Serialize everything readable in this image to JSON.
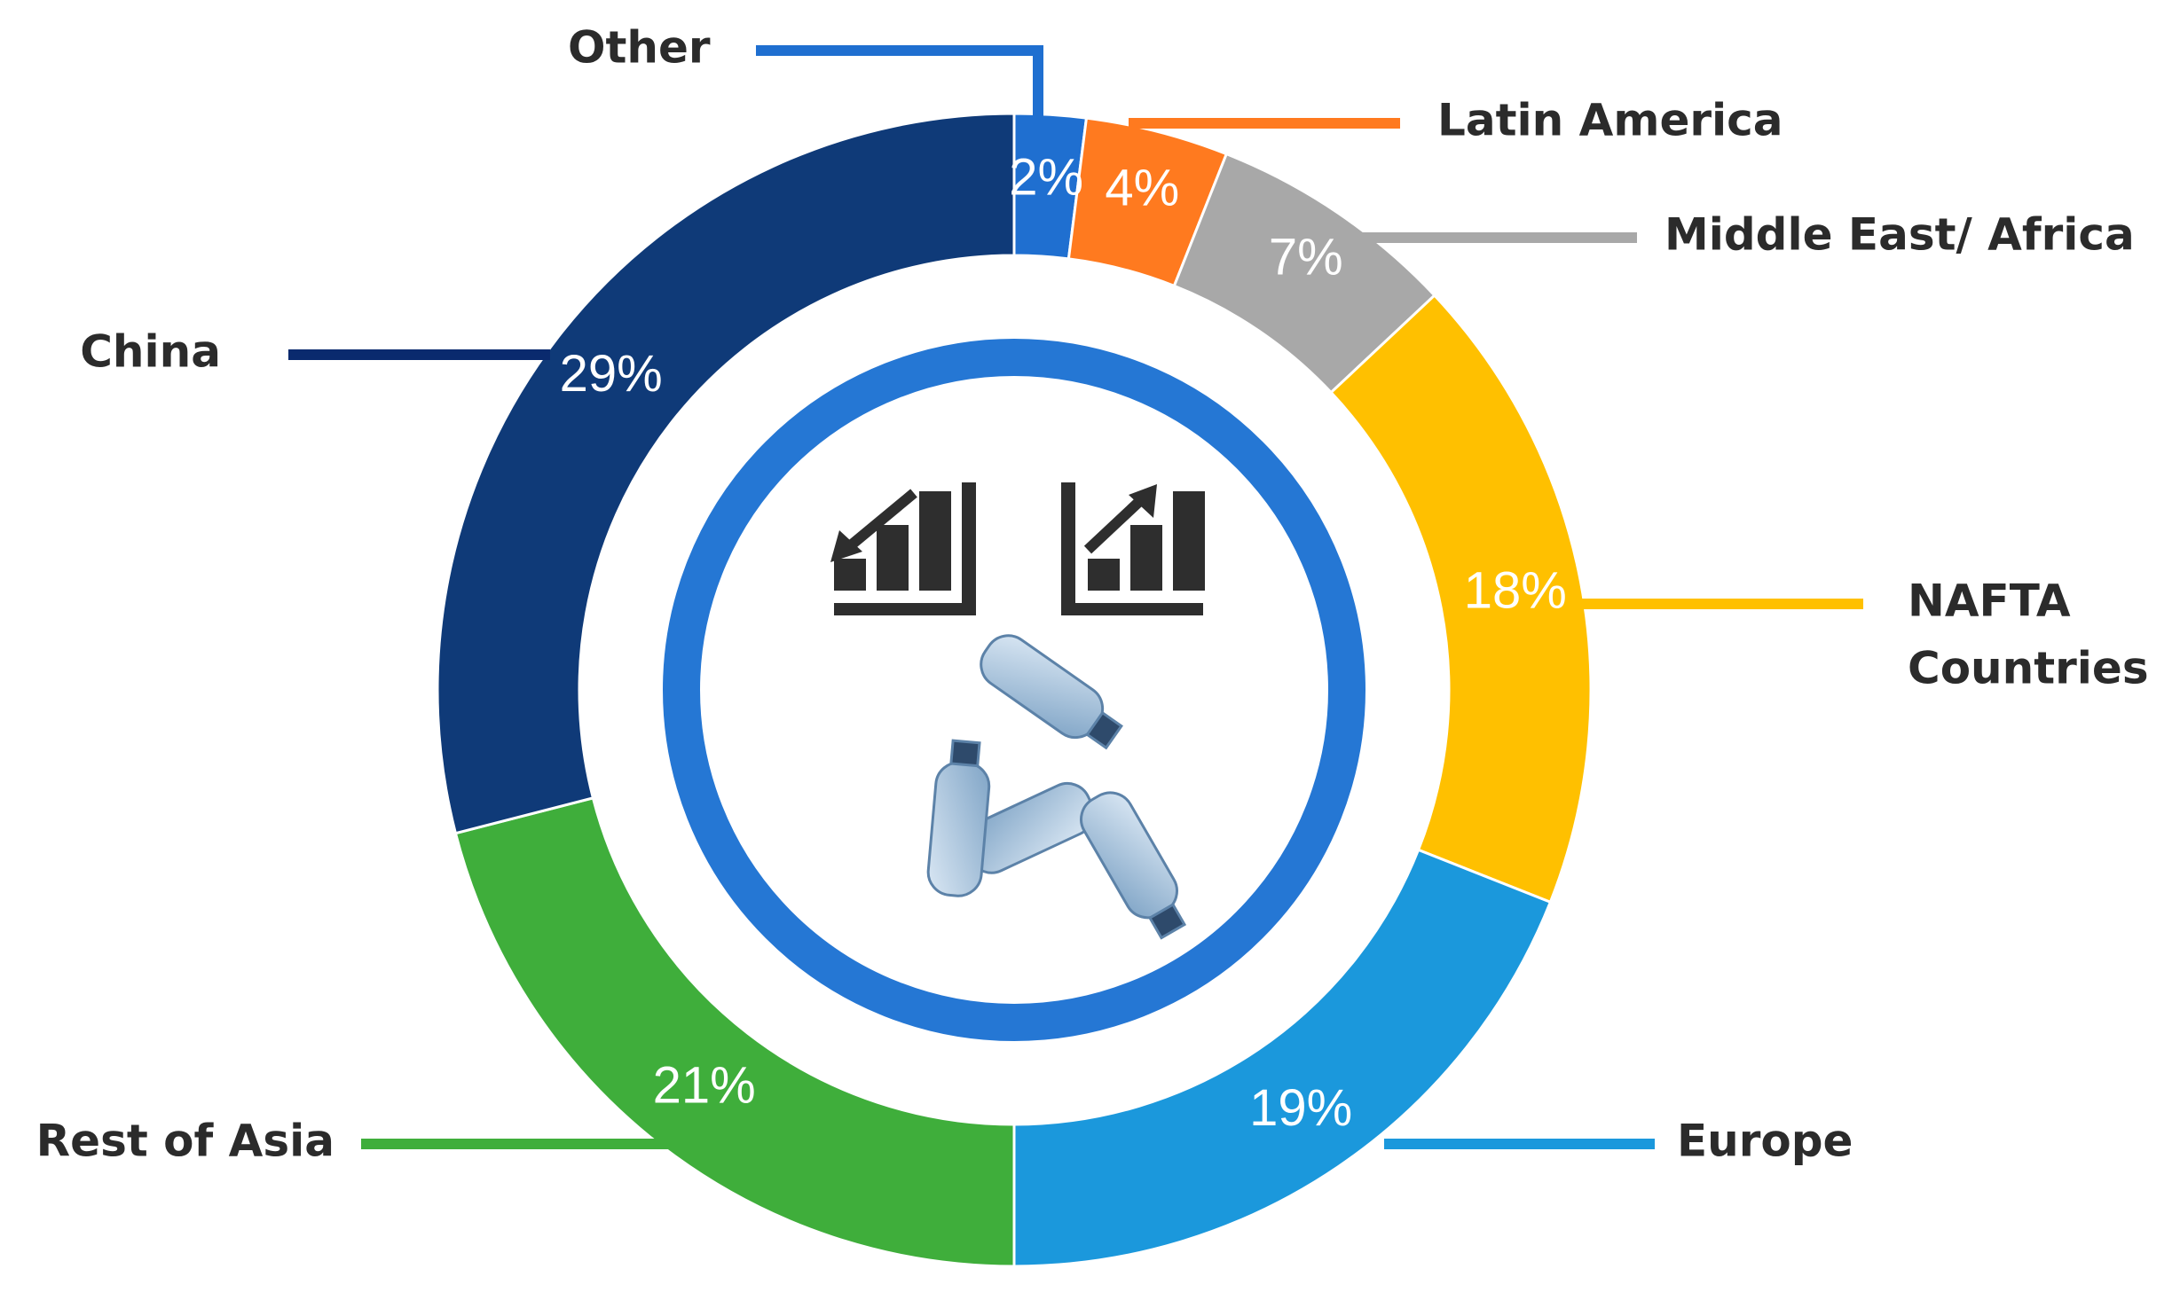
{
  "chart_data": {
    "type": "pie",
    "donut": true,
    "categories": [
      "Other",
      "Latin America",
      "Middle East/ Africa",
      "NAFTA Countries",
      "Europe",
      "Rest of Asia",
      "China"
    ],
    "values": [
      2,
      4,
      7,
      18,
      19,
      21,
      29
    ],
    "value_labels": [
      "2%",
      "4%",
      "7%",
      "18%",
      "19%",
      "21%",
      "29%"
    ],
    "colors": [
      "#1f6fd0",
      "#ff7a1f",
      "#a8a8a8",
      "#ffc000",
      "#1b98dc",
      "#3fae3b",
      "#0f3a78"
    ],
    "legend": "leader-line labels around ring",
    "title": "",
    "center_icons": [
      "bar-chart-decrease-icon",
      "bar-chart-increase-icon",
      "bottle-recycle-icon"
    ]
  }
}
